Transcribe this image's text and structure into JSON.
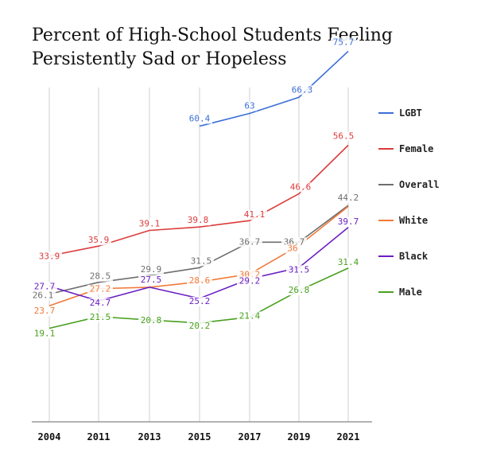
{
  "chart_data": {
    "type": "line",
    "title_line1": "Percent of High-School Students Feeling",
    "title_line2": "Persistently Sad or Hopeless",
    "categories": [
      "2004",
      "2011",
      "2013",
      "2015",
      "2017",
      "2019",
      "2021"
    ],
    "ylim": [
      0,
      80
    ],
    "grid": "vertical",
    "legend_position": "right",
    "series": [
      {
        "name": "LGBT",
        "color": "#3b6fd6",
        "values": [
          null,
          null,
          null,
          60.4,
          63,
          66.3,
          75.7
        ],
        "labels": [
          "",
          "",
          "",
          "60.4",
          "63",
          "66.3",
          "75.7"
        ]
      },
      {
        "name": "Female",
        "color": "#dd3b3b",
        "values": [
          33.9,
          35.9,
          39.1,
          39.8,
          41.1,
          46.6,
          56.5
        ],
        "labels": [
          "33.9",
          "35.9",
          "39.1",
          "39.8",
          "41.1",
          "46.6",
          "56.5"
        ]
      },
      {
        "name": "Overall",
        "color": "#6e6e6e",
        "values": [
          26.1,
          28.5,
          29.9,
          31.5,
          36.7,
          36.7,
          44.2
        ],
        "labels": [
          "26.1",
          "28.5",
          "29.9",
          "31.5",
          "36.7",
          "36.7",
          "44.2"
        ]
      },
      {
        "name": "White",
        "color": "#f07a3a",
        "values": [
          23.7,
          27.2,
          27.5,
          28.6,
          30.2,
          36,
          44
        ],
        "labels": [
          "23.7",
          "27.2",
          "",
          "28.6",
          "30.2",
          "36",
          ""
        ]
      },
      {
        "name": "Black",
        "color": "#6a1fc2",
        "values": [
          27.7,
          24.7,
          27.5,
          25.2,
          29.2,
          31.5,
          39.7
        ],
        "labels": [
          "27.7",
          "24.7",
          "27.5",
          "25.2",
          "29.2",
          "31.5",
          "39.7"
        ]
      },
      {
        "name": "Male",
        "color": "#4aa020",
        "values": [
          19.1,
          21.5,
          20.8,
          20.2,
          21.4,
          26.8,
          31.4
        ],
        "labels": [
          "19.1",
          "21.5",
          "20.8",
          "20.2",
          "21.4",
          "26.8",
          "31.4"
        ]
      }
    ]
  }
}
